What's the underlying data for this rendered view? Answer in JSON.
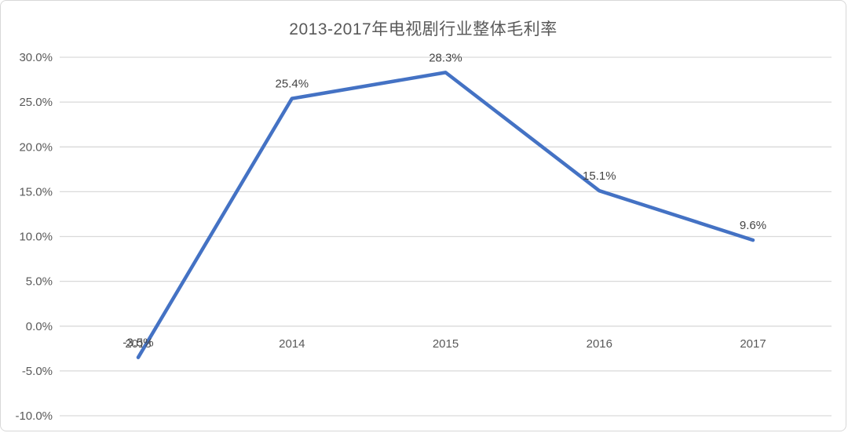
{
  "chart_data": {
    "type": "line",
    "title": "2013-2017年电视剧行业整体毛利率",
    "categories": [
      "2013",
      "2014",
      "2015",
      "2016",
      "2017"
    ],
    "series": [
      {
        "name": "整体毛利率",
        "values": [
          -3.5,
          25.4,
          28.3,
          15.1,
          9.6
        ],
        "data_labels": [
          "-3.5%",
          "25.4%",
          "28.3%",
          "15.1%",
          "9.6%"
        ]
      }
    ],
    "xlabel": "",
    "ylabel": "",
    "ylim": [
      -10,
      30
    ],
    "y_tick_values": [
      30,
      25,
      20,
      15,
      10,
      5,
      0,
      -5,
      -10
    ],
    "y_tick_labels": [
      "30.0%",
      "25.0%",
      "20.0%",
      "15.0%",
      "10.0%",
      "5.0%",
      "0.0%",
      "-5.0%",
      "-10.0%"
    ],
    "grid": true,
    "legend_position": "none",
    "line_color": "#4472C4",
    "gridline_color": "#D9D9D9",
    "axis_text_color": "#595959",
    "data_label_color": "#444444",
    "title_color": "#595959"
  }
}
